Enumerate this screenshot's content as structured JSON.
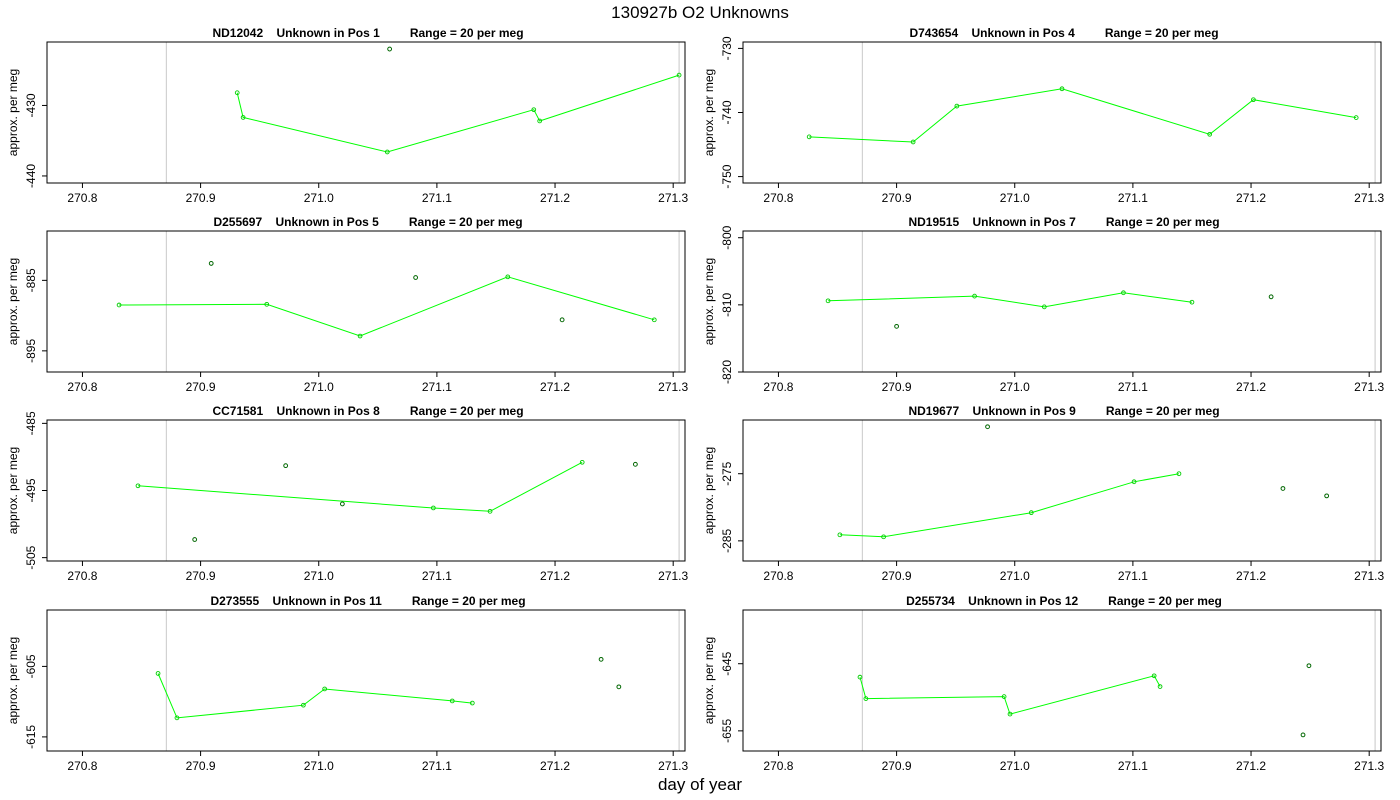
{
  "figure": {
    "title": "130927b  O2 Unknowns",
    "xlabel": "day of year",
    "ylabel": "approx. per meg",
    "colors": {
      "line": "#00ff00",
      "marker_line": "#00cc00",
      "marker_outlier": "#006600",
      "frame": "#000000",
      "vline": "#c8c8c8"
    }
  },
  "chart_data": [
    {
      "type": "line",
      "title": "ND12042    Unknown in Pos 1         Range = 20 per meg",
      "xlabel": "day of year",
      "ylabel": "approx. per meg",
      "xlim": [
        270.77,
        271.31
      ],
      "ylim": [
        -441,
        -421
      ],
      "xticks": [
        270.8,
        270.9,
        271.0,
        271.1,
        271.2,
        271.3
      ],
      "xtick_labels": [
        "270.8",
        "270.9",
        "271.0",
        "271.1",
        "271.2",
        "271.3"
      ],
      "yticks": [
        -430,
        -440
      ],
      "ytick_labels": [
        "-430",
        "-440"
      ],
      "vlines": [
        270.871,
        271.305
      ],
      "series": [
        {
          "name": "unknown",
          "x": [
            270.931,
            270.936,
            271.058,
            271.182,
            271.187,
            271.305
          ],
          "y": [
            -428.2,
            -431.7,
            -436.6,
            -430.6,
            -432.2,
            -425.7
          ]
        }
      ],
      "outliers": {
        "x": [
          271.06
        ],
        "y": [
          -422.0
        ]
      }
    },
    {
      "type": "line",
      "title": "D743654    Unknown in Pos 4         Range = 20 per meg",
      "xlabel": "day of year",
      "ylabel": "approx. per meg",
      "xlim": [
        270.77,
        271.31
      ],
      "ylim": [
        -751,
        -729
      ],
      "xticks": [
        270.8,
        270.9,
        271.0,
        271.1,
        271.2,
        271.3
      ],
      "xtick_labels": [
        "270.8",
        "270.9",
        "271.0",
        "271.1",
        "271.2",
        "271.3"
      ],
      "yticks": [
        -730,
        -740,
        -750
      ],
      "ytick_labels": [
        "-730",
        "-740",
        "-750"
      ],
      "vlines": [
        270.871,
        271.305
      ],
      "series": [
        {
          "name": "unknown",
          "x": [
            270.826,
            270.914,
            270.951,
            271.04,
            271.165,
            271.202,
            271.289
          ],
          "y": [
            -743.8,
            -744.6,
            -739.0,
            -736.3,
            -743.4,
            -738.0,
            -740.8
          ]
        }
      ],
      "outliers": {
        "x": [],
        "y": []
      }
    },
    {
      "type": "line",
      "title": "D255697    Unknown in Pos 5         Range = 20 per meg",
      "xlabel": "day of year",
      "ylabel": "approx. per meg",
      "xlim": [
        270.77,
        271.31
      ],
      "ylim": [
        -898,
        -878
      ],
      "xticks": [
        270.8,
        270.9,
        271.0,
        271.1,
        271.2,
        271.3
      ],
      "xtick_labels": [
        "270.8",
        "270.9",
        "271.0",
        "271.1",
        "271.2",
        "271.3"
      ],
      "yticks": [
        -885,
        -895
      ],
      "ytick_labels": [
        "-885",
        "-895"
      ],
      "vlines": [
        270.871,
        271.305
      ],
      "series": [
        {
          "name": "unknown",
          "x": [
            270.831,
            270.956,
            271.035,
            271.16,
            271.284
          ],
          "y": [
            -888.5,
            -888.4,
            -892.9,
            -884.5,
            -890.6
          ]
        }
      ],
      "outliers": {
        "x": [
          270.909,
          271.082,
          271.206
        ],
        "y": [
          -882.6,
          -884.6,
          -890.6
        ]
      }
    },
    {
      "type": "line",
      "title": "ND19515    Unknown in Pos 7         Range = 20 per meg",
      "xlabel": "day of year",
      "ylabel": "approx. per meg",
      "xlim": [
        270.77,
        271.31
      ],
      "ylim": [
        -820,
        -799
      ],
      "xticks": [
        270.8,
        270.9,
        271.0,
        271.1,
        271.2,
        271.3
      ],
      "xtick_labels": [
        "270.8",
        "270.9",
        "271.0",
        "271.1",
        "271.2",
        "271.3"
      ],
      "yticks": [
        -800,
        -810,
        -820
      ],
      "ytick_labels": [
        "-800",
        "-810",
        "-820"
      ],
      "vlines": [
        270.871,
        271.305
      ],
      "series": [
        {
          "name": "unknown",
          "x": [
            270.842,
            270.966,
            271.025,
            271.092,
            271.15
          ],
          "y": [
            -809.4,
            -808.7,
            -810.3,
            -808.2,
            -809.6
          ]
        }
      ],
      "outliers": {
        "x": [
          270.9,
          271.217
        ],
        "y": [
          -813.2,
          -808.8
        ]
      }
    },
    {
      "type": "line",
      "title": "CC71581    Unknown in Pos 8         Range = 20 per meg",
      "xlabel": "day of year",
      "ylabel": "approx. per meg",
      "xlim": [
        270.77,
        271.31
      ],
      "ylim": [
        -505.5,
        -484.5
      ],
      "xticks": [
        270.8,
        270.9,
        271.0,
        271.1,
        271.2,
        271.3
      ],
      "xtick_labels": [
        "270.8",
        "270.9",
        "271.0",
        "271.1",
        "271.2",
        "271.3"
      ],
      "yticks": [
        -485,
        -495,
        -505
      ],
      "ytick_labels": [
        "-485",
        "-495",
        "-505"
      ],
      "vlines": [
        270.871,
        271.305
      ],
      "series": [
        {
          "name": "unknown",
          "x": [
            270.847,
            271.097,
            271.145,
            271.223
          ],
          "y": [
            -494.3,
            -497.6,
            -498.1,
            -490.8
          ]
        }
      ],
      "outliers": {
        "x": [
          270.895,
          270.972,
          271.02,
          271.268
        ],
        "y": [
          -502.3,
          -491.3,
          -497.0,
          -491.1
        ]
      }
    },
    {
      "type": "line",
      "title": "ND19677    Unknown in Pos 9         Range = 20 per meg",
      "xlabel": "day of year",
      "ylabel": "approx. per meg",
      "xlim": [
        270.77,
        271.31
      ],
      "ylim": [
        -288,
        -267
      ],
      "xticks": [
        270.8,
        270.9,
        271.0,
        271.1,
        271.2,
        271.3
      ],
      "xtick_labels": [
        "270.8",
        "270.9",
        "271.0",
        "271.1",
        "271.2",
        "271.3"
      ],
      "yticks": [
        -275,
        -285
      ],
      "ytick_labels": [
        "-275",
        "-285"
      ],
      "vlines": [
        270.871,
        271.305
      ],
      "series": [
        {
          "name": "unknown",
          "x": [
            270.852,
            270.889,
            271.014,
            271.101,
            271.139
          ],
          "y": [
            -284.1,
            -284.4,
            -280.8,
            -276.2,
            -275.0
          ]
        }
      ],
      "outliers": {
        "x": [
          270.977,
          271.227,
          271.264
        ],
        "y": [
          -268.0,
          -277.2,
          -278.3
        ]
      }
    },
    {
      "type": "line",
      "title": "D273555    Unknown in Pos 11         Range = 20 per meg",
      "xlabel": "day of year",
      "ylabel": "approx. per meg",
      "xlim": [
        270.77,
        271.31
      ],
      "ylim": [
        -617,
        -597
      ],
      "xticks": [
        270.8,
        270.9,
        271.0,
        271.1,
        271.2,
        271.3
      ],
      "xtick_labels": [
        "270.8",
        "270.9",
        "271.0",
        "271.1",
        "271.2",
        "271.3"
      ],
      "yticks": [
        -605,
        -615
      ],
      "ytick_labels": [
        "-605",
        "-615"
      ],
      "vlines": [
        270.871,
        271.305
      ],
      "series": [
        {
          "name": "unknown",
          "x": [
            270.864,
            270.88,
            270.987,
            271.005,
            271.113,
            271.13
          ],
          "y": [
            -606.0,
            -612.3,
            -610.5,
            -608.2,
            -609.9,
            -610.2
          ]
        }
      ],
      "outliers": {
        "x": [
          271.239,
          271.254
        ],
        "y": [
          -604.0,
          -607.9
        ]
      }
    },
    {
      "type": "line",
      "title": "D255734    Unknown in Pos 12         Range = 20 per meg",
      "xlabel": "day of year",
      "ylabel": "approx. per meg",
      "xlim": [
        270.77,
        271.31
      ],
      "ylim": [
        -658,
        -637
      ],
      "xticks": [
        270.8,
        270.9,
        271.0,
        271.1,
        271.2,
        271.3
      ],
      "xtick_labels": [
        "270.8",
        "270.9",
        "271.0",
        "271.1",
        "271.2",
        "271.3"
      ],
      "yticks": [
        -645,
        -655
      ],
      "ytick_labels": [
        "-645",
        "-655"
      ],
      "vlines": [
        270.871,
        271.305
      ],
      "series": [
        {
          "name": "unknown",
          "x": [
            270.869,
            270.874,
            270.991,
            270.996,
            271.118,
            271.123
          ],
          "y": [
            -647.0,
            -650.2,
            -649.9,
            -652.5,
            -646.8,
            -648.4
          ]
        }
      ],
      "outliers": {
        "x": [
          271.249,
          271.244
        ],
        "y": [
          -645.3,
          -655.6
        ]
      }
    }
  ]
}
